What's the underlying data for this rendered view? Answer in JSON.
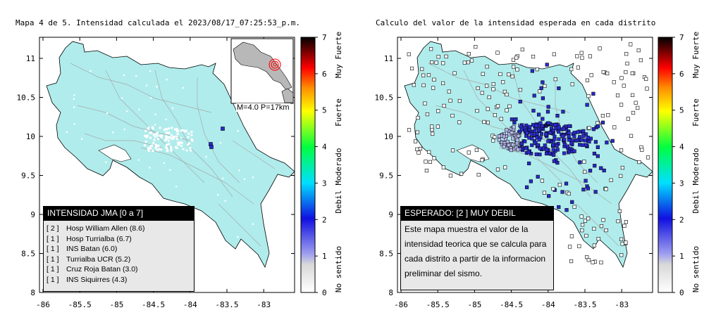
{
  "left_map": {
    "title": "Mapa 4 de 5. Intensidad calculada el 2023/08/17_07:25:53_p.m.",
    "x_ticks": [
      "-86",
      "-85.5",
      "-85",
      "-84.5",
      "-84",
      "-83.5",
      "-83"
    ],
    "y_ticks": [
      "11",
      "10.5",
      "10",
      "9.5",
      "9",
      "8.5",
      "8"
    ],
    "inset_label": "M=4.0 P=17km",
    "legend": {
      "header": "INTENSIDAD JMA [0 a 7]",
      "stations": [
        {
          "level": "[ 2 ]",
          "name": "Hosp William Allen (8.6)"
        },
        {
          "level": "[ 1 ]",
          "name": "Hosp Turrialba (6.7)"
        },
        {
          "level": "[ 1 ]",
          "name": "INS Batan (6.0)"
        },
        {
          "level": "[ 1 ]",
          "name": "Turrialba UCR (5.2)"
        },
        {
          "level": "[ 1 ]",
          "name": "Cruz Roja Batan (3.0)"
        },
        {
          "level": "[ 1 ]",
          "name": "INS Siquirres (4.3)"
        }
      ]
    }
  },
  "right_map": {
    "title": "Calculo del valor de la intensidad esperada en cada distrito",
    "x_ticks": [
      "-86",
      "-85.5",
      "-85",
      "-84.5",
      "-84",
      "-83.5",
      "-83"
    ],
    "y_ticks": [
      "11",
      "10.5",
      "10",
      "9.5",
      "9",
      "8.5",
      "8"
    ],
    "info": {
      "header": "ESPERADO: [2 ] MUY DEBIL",
      "text": "Este mapa muestra el valor de la intensidad teorica que se calcula para cada distrito a partir de la informacion preliminar del sismo."
    }
  },
  "colorbar": {
    "ticks": [
      "7",
      "6",
      "5",
      "4",
      "3",
      "2",
      "1",
      "0"
    ],
    "labels": [
      "Muy Fuerte",
      "Fuerte",
      "Moderado",
      "Debil",
      "No sentido"
    ]
  },
  "colors": {
    "land": "#b0ecec",
    "sea": "#ffffff",
    "district_marker": "#2a2ad0",
    "weak_marker": "#b8b8ee"
  },
  "chart_data": {
    "type": "map",
    "x_axis": "longitude",
    "y_axis": "latitude",
    "xlim": [
      -86,
      -82.6
    ],
    "ylim": [
      8,
      11.3
    ],
    "epicenter": {
      "lon": -83.92,
      "lat": 9.86,
      "magnitude": 4.0,
      "depth_km": 17
    }
  }
}
